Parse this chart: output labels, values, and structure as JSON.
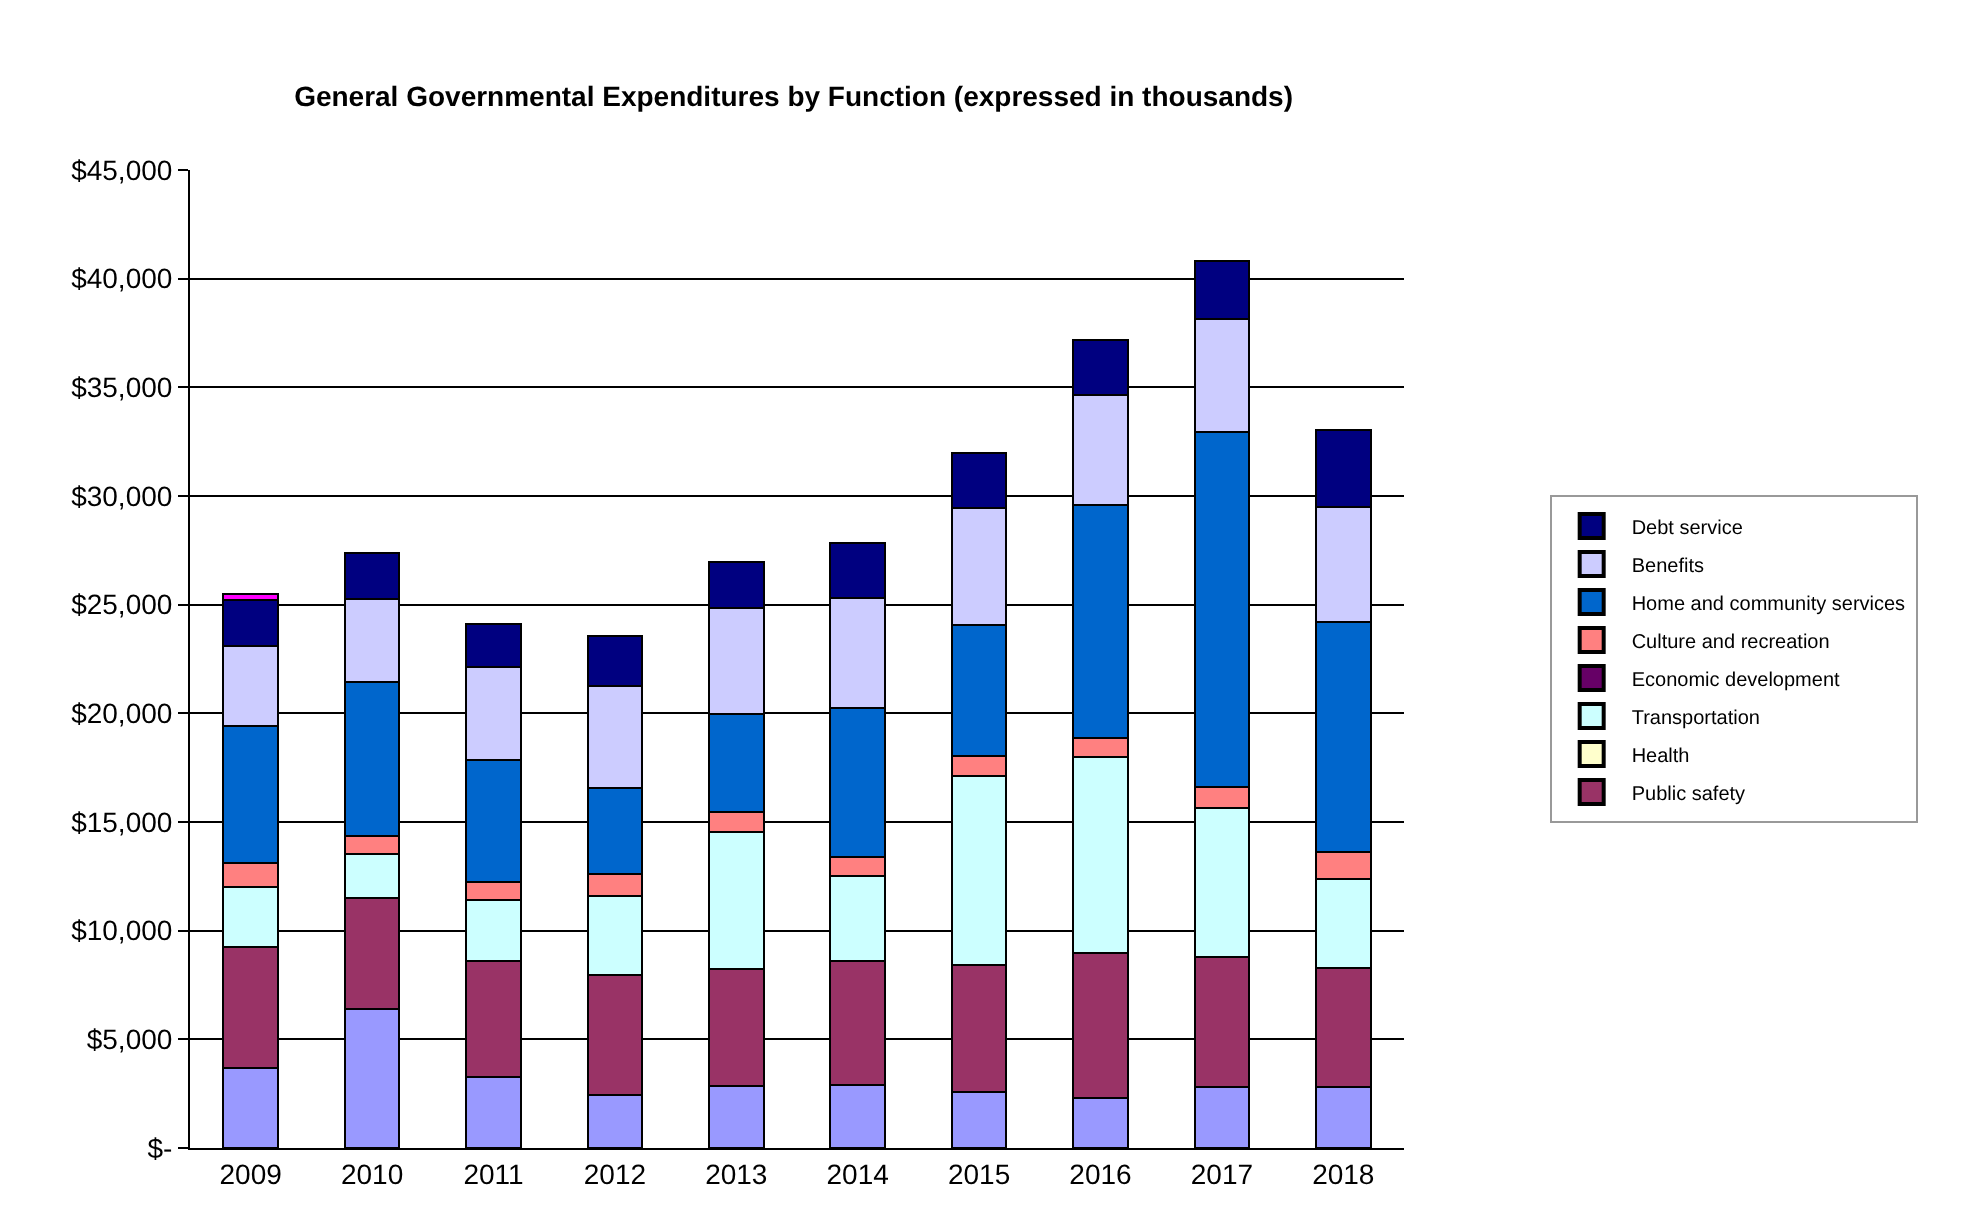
{
  "chart_data": {
    "type": "bar",
    "stacked": true,
    "title": "General Governmental Expenditures by Function (expressed in thousands)",
    "categories": [
      "2009",
      "2010",
      "2011",
      "2012",
      "2013",
      "2014",
      "2015",
      "2016",
      "2017",
      "2018"
    ],
    "series": [
      {
        "color": "#9999ff",
        "values": [
          3700,
          6400,
          3250,
          2450,
          2850,
          2900,
          2600,
          2300,
          2800,
          2800
        ]
      },
      {
        "name": "Public safety",
        "color": "#993366",
        "values": [
          5550,
          5100,
          5350,
          5500,
          5400,
          5700,
          5800,
          6650,
          6000,
          5500
        ]
      },
      {
        "name": "Health",
        "color": "#ffffcc",
        "values": [
          0,
          0,
          0,
          0,
          0,
          0,
          0,
          0,
          0,
          0
        ]
      },
      {
        "name": "Transportation",
        "color": "#ccffff",
        "values": [
          2750,
          2050,
          2800,
          3650,
          6300,
          3900,
          8700,
          9050,
          6850,
          4100
        ]
      },
      {
        "name": "Economic development",
        "color": "#660066",
        "values": [
          0,
          0,
          0,
          0,
          0,
          0,
          0,
          0,
          0,
          0
        ]
      },
      {
        "name": "Culture and recreation",
        "color": "#ff8080",
        "values": [
          1100,
          800,
          850,
          1000,
          900,
          900,
          950,
          850,
          950,
          1200
        ]
      },
      {
        "name": "Home and community services",
        "color": "#0066cc",
        "values": [
          6300,
          7100,
          5600,
          3950,
          4500,
          6850,
          6000,
          10750,
          16350,
          10600
        ]
      },
      {
        "name": "Benefits",
        "color": "#ccccff",
        "values": [
          3700,
          3800,
          4300,
          4700,
          4900,
          5050,
          5400,
          5050,
          5200,
          5300
        ]
      },
      {
        "name": "Debt service",
        "color": "#000080",
        "values": [
          2100,
          2150,
          1950,
          2300,
          2100,
          2550,
          2550,
          2550,
          2650,
          3550
        ]
      },
      {
        "color": "#ff00ff",
        "values": [
          300,
          null,
          null,
          null,
          null,
          null,
          null,
          null,
          null,
          null
        ]
      }
    ],
    "ylim": [
      0,
      45000
    ],
    "yticks": [
      {
        "value": 0,
        "label": "$-"
      },
      {
        "value": 5000,
        "label": "$5,000"
      },
      {
        "value": 10000,
        "label": "$10,000"
      },
      {
        "value": 15000,
        "label": "$15,000"
      },
      {
        "value": 20000,
        "label": "$20,000"
      },
      {
        "value": 25000,
        "label": "$25,000"
      },
      {
        "value": 30000,
        "label": "$30,000"
      },
      {
        "value": 35000,
        "label": "$35,000"
      },
      {
        "value": 40000,
        "label": "$40,000"
      },
      {
        "value": 45000,
        "label": "$45,000"
      }
    ],
    "grid": "y",
    "legend": "right"
  }
}
